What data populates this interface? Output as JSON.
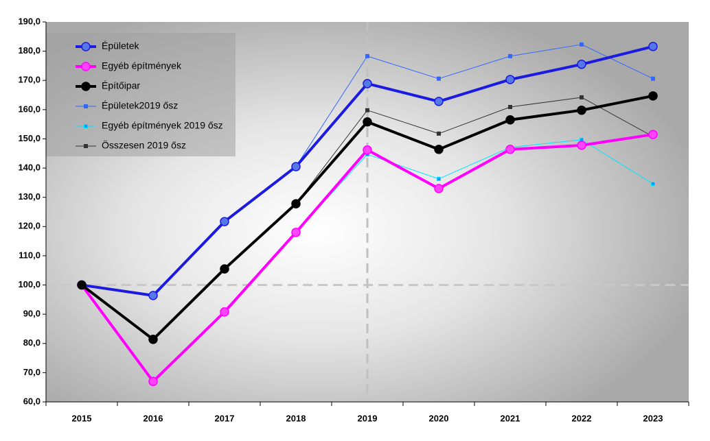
{
  "chart_data": {
    "type": "line",
    "categories": [
      "2015",
      "2016",
      "2017",
      "2018",
      "2019",
      "2020",
      "2021",
      "2022",
      "2023"
    ],
    "series": [
      {
        "name": "Épületek",
        "color": "#1a1ae0",
        "width": 4,
        "values": [
          100,
          96.4,
          121.7,
          140.5,
          168.9,
          162.8,
          170.3,
          175.5,
          181.6
        ]
      },
      {
        "name": "Egyéb építmények",
        "color": "#ff00ff",
        "width": 4,
        "values": [
          100,
          67.0,
          90.8,
          118.0,
          146.2,
          133.0,
          146.4,
          147.8,
          151.5
        ]
      },
      {
        "name": "Építőipar",
        "color": "#000000",
        "width": 4,
        "values": [
          100,
          81.4,
          105.5,
          127.8,
          155.8,
          146.4,
          156.5,
          159.8,
          164.7
        ]
      },
      {
        "name": "Épületek2019 ősz",
        "color": "#3366ff",
        "width": 1,
        "values": [
          100,
          96.4,
          121.7,
          140.5,
          178.3,
          170.6,
          178.3,
          182.3,
          170.6
        ]
      },
      {
        "name": "Egyéb építmények 2019 ősz",
        "color": "#00e5ff",
        "width": 1,
        "values": [
          100,
          67.0,
          90.8,
          118.0,
          144.7,
          136.3,
          147.1,
          149.7,
          134.6
        ]
      },
      {
        "name": "Összesen 2019 ősz",
        "color": "#333333",
        "width": 1,
        "values": [
          100,
          81.4,
          105.5,
          127.8,
          159.8,
          151.8,
          160.9,
          164.2,
          150.8
        ]
      }
    ],
    "ylim": [
      60,
      190
    ],
    "yticks": [
      {
        "value": 60,
        "label": "60,0"
      },
      {
        "value": 70,
        "label": "70,0"
      },
      {
        "value": 80,
        "label": "80,0"
      },
      {
        "value": 90,
        "label": "90,0"
      },
      {
        "value": 100,
        "label": "100,0"
      },
      {
        "value": 110,
        "label": "110,0"
      },
      {
        "value": 120,
        "label": "120,0"
      },
      {
        "value": 130,
        "label": "130,0"
      },
      {
        "value": 140,
        "label": "140,0"
      },
      {
        "value": 150,
        "label": "150,0"
      },
      {
        "value": 160,
        "label": "160,0"
      },
      {
        "value": 170,
        "label": "170,0"
      },
      {
        "value": 180,
        "label": "180,0"
      },
      {
        "value": 190,
        "label": "190,0"
      }
    ],
    "hline": 100,
    "legend": "upper left"
  }
}
